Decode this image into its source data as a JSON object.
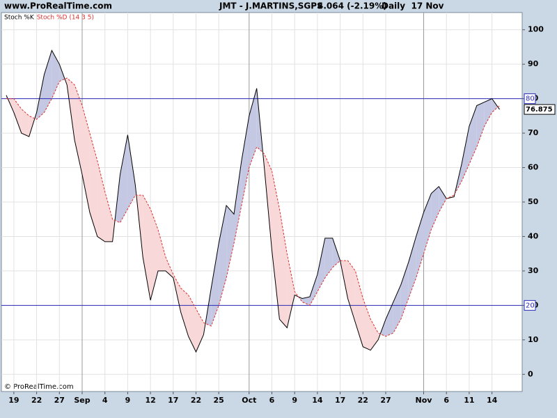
{
  "header": {
    "site": "www.ProRealTime.com",
    "instrument": "JMT - J.MARTINS,SGPS",
    "quote": "4.064 (-2.19%)",
    "period": "Daily  17 Nov"
  },
  "copyright": "© ProRealTime.com",
  "chart_data": {
    "type": "line",
    "categories": [
      null,
      "19",
      null,
      null,
      "22",
      null,
      null,
      "27",
      null,
      null,
      "Sep",
      null,
      null,
      "4",
      null,
      null,
      "9",
      null,
      null,
      "12",
      null,
      null,
      "17",
      null,
      null,
      "22",
      null,
      null,
      "25",
      null,
      null,
      null,
      "Oct",
      null,
      null,
      "6",
      null,
      null,
      "9",
      null,
      null,
      "14",
      null,
      null,
      "17",
      null,
      null,
      "22",
      null,
      null,
      "27",
      null,
      null,
      null,
      null,
      "Nov",
      null,
      null,
      "6",
      null,
      null,
      "11",
      null,
      null,
      "14",
      null
    ],
    "series": [
      {
        "name": "Stoch %K",
        "color": "#000000",
        "values": [
          81,
          76,
          70,
          69,
          76,
          87,
          94,
          90,
          84,
          68,
          58,
          47,
          40,
          38.5,
          38.5,
          58,
          69.5,
          55,
          34,
          21.5,
          30,
          30,
          28,
          18,
          11,
          6.5,
          11.5,
          25,
          38,
          49,
          46.5,
          62,
          75,
          83,
          60,
          36,
          16,
          13.5,
          23,
          22,
          22.5,
          29,
          39.5,
          39.5,
          33,
          22,
          15,
          8,
          7,
          10,
          16,
          21,
          26,
          32.5,
          40,
          47,
          52.5,
          54.5,
          51,
          51.5,
          61,
          72,
          78,
          79,
          80,
          76.875
        ]
      },
      {
        "name": "Stoch %D (14 3 5)",
        "color": "#e03030",
        "dashed": true,
        "values": [
          80,
          80,
          77,
          75,
          74,
          76,
          80,
          85,
          86,
          84,
          78,
          70,
          62,
          53,
          45,
          44,
          48,
          52,
          52,
          48,
          42,
          34,
          29,
          25,
          23,
          19,
          15,
          14,
          20,
          28,
          38,
          49,
          60,
          66,
          64,
          59,
          48,
          35,
          24,
          21,
          20,
          24,
          28,
          31,
          33,
          33,
          30,
          22,
          16,
          12,
          11,
          12,
          16,
          22,
          28,
          35,
          42,
          47,
          51,
          52,
          56,
          61,
          66,
          72,
          76,
          78
        ]
      }
    ],
    "fill_above": "#c4c8e2",
    "fill_below": "#f8d8d8",
    "ylim": [
      -5,
      105
    ],
    "yticks": [
      0,
      10,
      20,
      30,
      40,
      50,
      60,
      70,
      80,
      90,
      100
    ],
    "levels": [
      80,
      20
    ],
    "level_color": "#2a2ab8",
    "grid": true
  }
}
